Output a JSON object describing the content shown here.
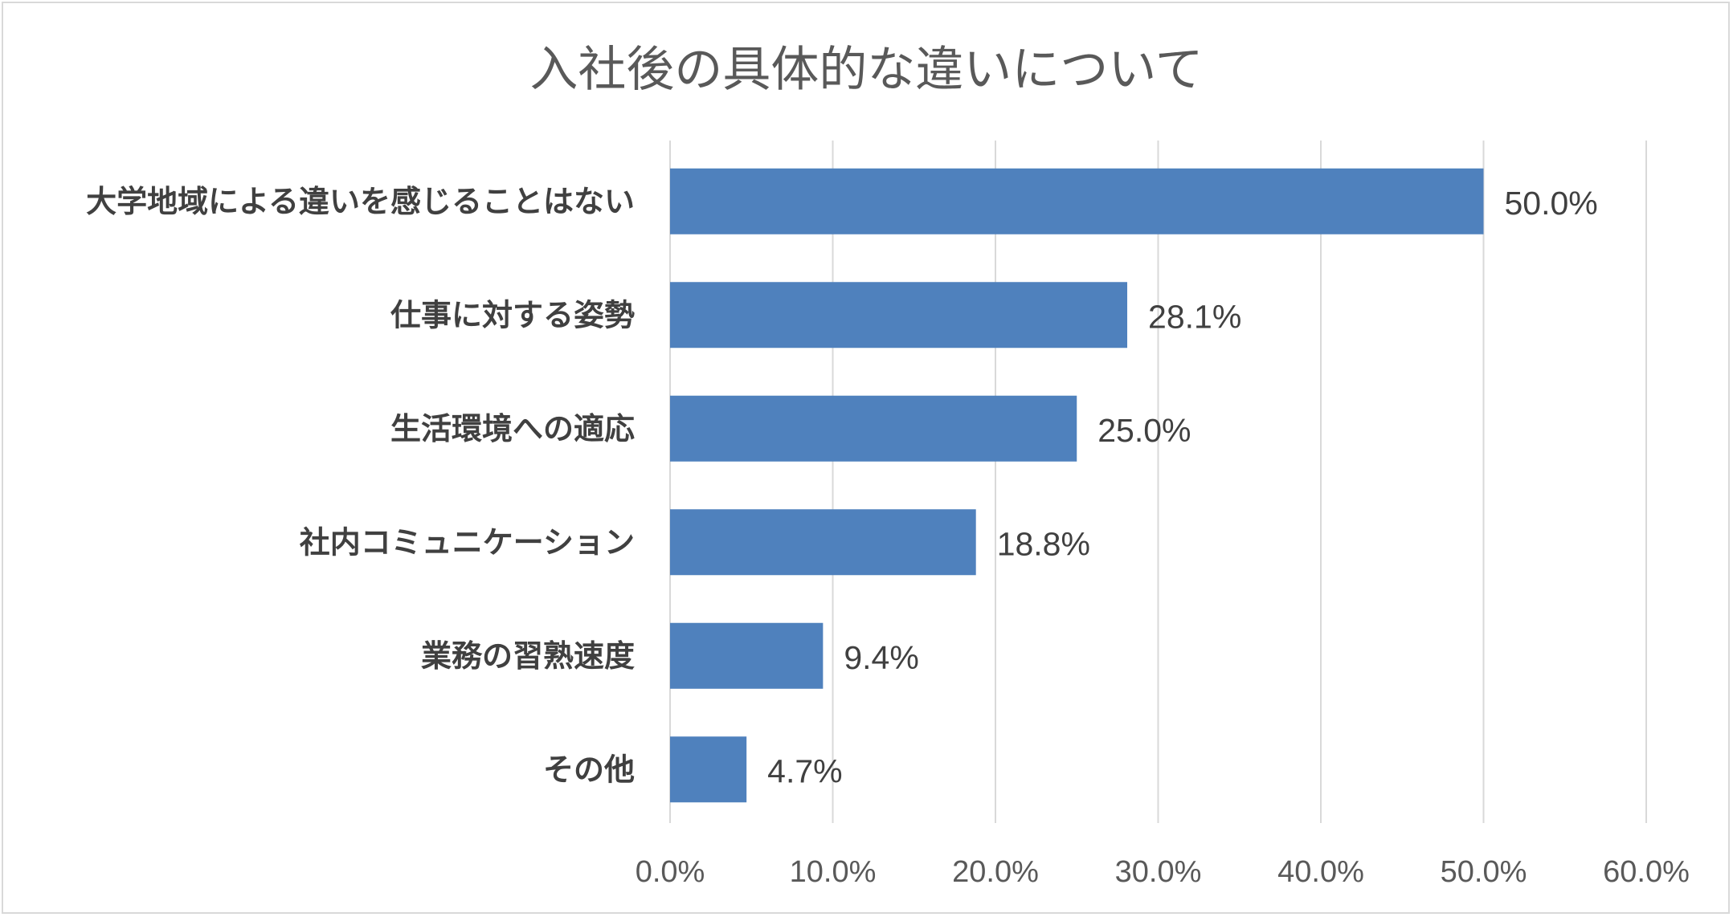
{
  "chart_data": {
    "type": "bar",
    "orientation": "horizontal",
    "title": "入社後の具体的な違いについて",
    "categories": [
      "大学地域による違いを感じることはない",
      "仕事に対する姿勢",
      "生活環境への適応",
      "社内コミュニケーション",
      "業務の習熟速度",
      "その他"
    ],
    "values": [
      50.0,
      28.1,
      25.0,
      18.8,
      9.4,
      4.7
    ],
    "data_labels": [
      "50.0%",
      "28.1%",
      "25.0%",
      "18.8%",
      "9.4%",
      "4.7%"
    ],
    "xlim": [
      0,
      60
    ],
    "x_ticks": [
      0,
      10,
      20,
      30,
      40,
      50,
      60
    ],
    "x_tick_labels": [
      "0.0%",
      "10.0%",
      "20.0%",
      "30.0%",
      "40.0%",
      "50.0%",
      "60.0%"
    ],
    "grid": "vertical",
    "legend": "none",
    "bar_color": "#4f81bd",
    "grid_color": "#d9d9d9"
  }
}
